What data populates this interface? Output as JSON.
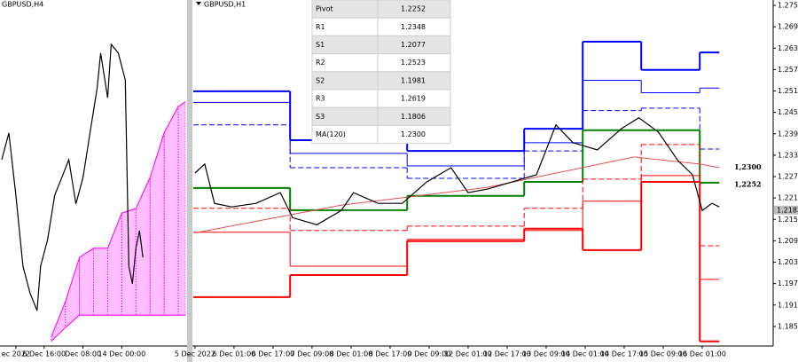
{
  "chart_data": [
    {
      "type": "line",
      "title": "GBPUSD,H4",
      "x": [
        0,
        2,
        4,
        6,
        8,
        10,
        11,
        13,
        15,
        17,
        19,
        21,
        23,
        25,
        27,
        28,
        30,
        31,
        33,
        35,
        36,
        37,
        38,
        39,
        40
      ],
      "values": [
        1.2154,
        1.2212,
        1.2077,
        1.1923,
        1.1865,
        1.1827,
        1.1923,
        1.1981,
        1.2077,
        1.2115,
        1.2154,
        1.2058,
        1.2115,
        1.2212,
        1.2308,
        1.2385,
        1.2288,
        1.2404,
        1.2385,
        1.2327,
        1.1923,
        1.1885,
        1.1962,
        1.2,
        1.1942
      ],
      "color": "#000000",
      "cloud": {
        "color": "#ff00ff",
        "x": [
          14,
          18,
          22,
          26,
          30,
          34,
          38,
          42,
          46,
          50,
          52
        ],
        "upper": [
          1.1769,
          1.1846,
          1.1942,
          1.1962,
          1.1962,
          1.2038,
          1.2048,
          1.2115,
          1.2212,
          1.2269,
          1.2279
        ],
        "lower": [
          1.176,
          1.179,
          1.1817,
          1.1817,
          1.1817,
          1.1817,
          1.1817,
          1.1817,
          1.1817,
          1.1817,
          1.1817
        ]
      },
      "xlim": [
        -0.5,
        52.5
      ],
      "ylim": [
        1.175,
        1.25
      ],
      "xticks": [
        {
          "value": 4,
          "label": "ec 2022"
        },
        {
          "value": 12,
          "label": "6 Dec 16:00"
        },
        {
          "value": 23,
          "label": "Dec 08:00"
        },
        {
          "value": 34,
          "label": "14 Dec 00:00"
        }
      ]
    },
    {
      "type": "line",
      "title": "GBPUSD,H1",
      "x": [
        0,
        4,
        8,
        15,
        25,
        35,
        40,
        50,
        60,
        65,
        75,
        85,
        95,
        105,
        112,
        120,
        130,
        140,
        148,
        155,
        165,
        175,
        182,
        190,
        198,
        204,
        208,
        212,
        215
      ],
      "values": [
        1.2285,
        1.231,
        1.22,
        1.219,
        1.22,
        1.223,
        1.216,
        1.214,
        1.218,
        1.223,
        1.22,
        1.22,
        1.226,
        1.23,
        1.223,
        1.224,
        1.226,
        1.228,
        1.242,
        1.237,
        1.235,
        1.241,
        1.244,
        1.24,
        1.232,
        1.228,
        1.218,
        1.22,
        1.219
      ],
      "color": "#000000",
      "ma": {
        "color": "#e05050",
        "x": [
          0,
          60,
          120,
          180,
          207,
          215
        ],
        "values": [
          1.2117,
          1.2195,
          1.2245,
          1.233,
          1.231,
          1.23
        ]
      },
      "level_edges": [
        -0.7,
        39,
        87,
        135,
        159,
        183,
        207,
        215
      ],
      "levels": [
        {
          "color": "#0000ff",
          "width": 2,
          "dash": "none",
          "values": [
            1.2514,
            1.2377,
            1.2347,
            1.2409,
            1.2653,
            1.2574,
            1.2623
          ]
        },
        {
          "color": "#0000ff",
          "width": 1,
          "dash": "none",
          "values": [
            1.2483,
            1.234,
            1.2305,
            1.237,
            1.2545,
            1.251,
            1.2523
          ]
        },
        {
          "color": "#0000ff",
          "width": 1,
          "dash": "6 3",
          "values": [
            1.242,
            1.23,
            1.227,
            1.2347,
            1.246,
            1.2467,
            1.2352
          ]
        },
        {
          "color": "#008000",
          "width": 2,
          "dash": "none",
          "values": [
            1.2243,
            1.2181,
            1.2221,
            1.226,
            1.2405,
            1.2405,
            1.2258
          ]
        },
        {
          "color": "#ff0000",
          "width": 1,
          "dash": "6 3",
          "values": [
            1.2186,
            1.2124,
            1.2136,
            1.2186,
            1.2268,
            1.2365,
            1.2081
          ]
        },
        {
          "color": "#ff0000",
          "width": 1,
          "dash": "none",
          "values": [
            1.2119,
            1.2024,
            1.2099,
            1.2124,
            1.2206,
            1.2278,
            1.1987
          ]
        },
        {
          "color": "#ff0000",
          "width": 2,
          "dash": "none",
          "values": [
            1.1937,
            1.1999,
            1.2094,
            1.2129,
            1.2069,
            1.226,
            1.1813
          ]
        }
      ],
      "xlim": [
        -0.7,
        237.1
      ],
      "ylim": [
        1.18,
        1.277
      ],
      "yticks": [
        1.2755,
        1.2695,
        1.2635,
        1.2575,
        1.2515,
        1.2455,
        1.2395,
        1.2335,
        1.2275,
        1.2215,
        1.2155,
        1.2095,
        1.2035,
        1.1975,
        1.1915,
        1.1855
      ],
      "xticks": [
        {
          "value": 0,
          "label": "5 Dec 2022"
        },
        {
          "value": 16,
          "label": "6 Dec 01:00"
        },
        {
          "value": 32,
          "label": "6 Dec 17:00"
        },
        {
          "value": 48,
          "label": "7 Dec 09:00"
        },
        {
          "value": 64,
          "label": "8 Dec 01:00"
        },
        {
          "value": 80,
          "label": "8 Dec 17:00"
        },
        {
          "value": 96,
          "label": "9 Dec 09:00"
        },
        {
          "value": 112,
          "label": "12 Dec 01:00"
        },
        {
          "value": 128,
          "label": "12 Dec 17:00"
        },
        {
          "value": 144,
          "label": "13 Dec 09:00"
        },
        {
          "value": 160,
          "label": "14 Dec 01:00"
        },
        {
          "value": 176,
          "label": "14 Dec 17:00"
        },
        {
          "value": 192,
          "label": "15 Dec 09:00"
        },
        {
          "value": 208,
          "label": "16 Dec 01:00"
        }
      ],
      "last_price": {
        "value": 1.2181,
        "label": "1.2181"
      },
      "annotations": [
        {
          "value": 1.23,
          "label": "1,2300"
        },
        {
          "value": 1.2252,
          "label": "1,2252"
        }
      ],
      "pivot_table": {
        "rows": [
          [
            "Pivot",
            "1.2252"
          ],
          [
            "R1",
            "1.2348"
          ],
          [
            "S1",
            "1.2077"
          ],
          [
            "R2",
            "1.2523"
          ],
          [
            "S2",
            "1.1981"
          ],
          [
            "R3",
            "1.2619"
          ],
          [
            "S3",
            "1.1806"
          ],
          [
            "MA(120)",
            "1.2300"
          ]
        ]
      }
    }
  ]
}
